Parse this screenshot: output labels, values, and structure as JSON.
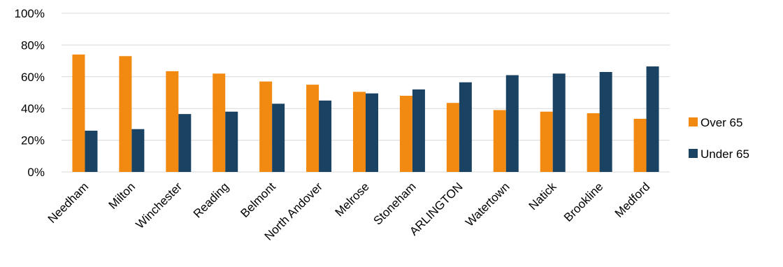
{
  "chart_data": {
    "type": "bar",
    "title": "",
    "xlabel": "",
    "ylabel": "",
    "ylim": [
      0,
      100
    ],
    "y_ticks": [
      "0%",
      "20%",
      "40%",
      "60%",
      "80%",
      "100%"
    ],
    "y_tick_values": [
      0,
      20,
      40,
      60,
      80,
      100
    ],
    "grid": true,
    "legend_position": "right",
    "categories": [
      "Needham",
      "Milton",
      "Winchester",
      "Reading",
      "Belmont",
      "North Andover",
      "Melrose",
      "Stoneham",
      "ARLINGTON",
      "Watertown",
      "Natick",
      "Brookline",
      "Medford"
    ],
    "series": [
      {
        "name": "Over 65",
        "color": "#F28A12",
        "values": [
          74,
          73,
          63.5,
          62,
          57,
          55,
          50.5,
          48,
          43.5,
          39,
          38,
          37,
          33.5
        ]
      },
      {
        "name": "Under 65",
        "color": "#1A4363",
        "values": [
          26,
          27,
          36.5,
          38,
          43,
          45,
          49.5,
          52,
          56.5,
          61,
          62,
          63,
          66.5
        ]
      }
    ]
  }
}
